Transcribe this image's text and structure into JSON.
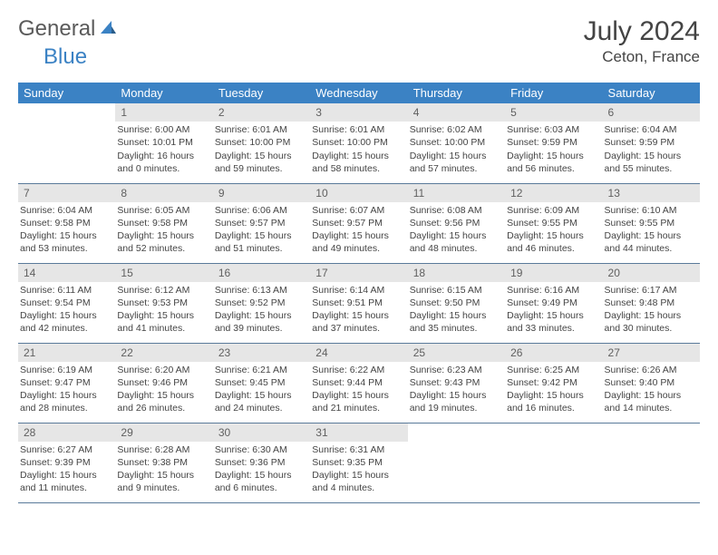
{
  "logo": {
    "word1": "General",
    "word2": "Blue"
  },
  "title": "July 2024",
  "location": "Ceton, France",
  "colors": {
    "header_bg": "#3b82c4",
    "header_fg": "#ffffff",
    "daynum_bg": "#e6e6e6",
    "daynum_fg": "#606060",
    "row_border": "#5a7a9a",
    "text": "#444444",
    "logo_gray": "#5a5a5a",
    "logo_blue": "#3b82c4"
  },
  "weekdays": [
    "Sunday",
    "Monday",
    "Tuesday",
    "Wednesday",
    "Thursday",
    "Friday",
    "Saturday"
  ],
  "weeks": [
    [
      null,
      {
        "n": "1",
        "sr": "Sunrise: 6:00 AM",
        "ss": "Sunset: 10:01 PM",
        "d1": "Daylight: 16 hours",
        "d2": "and 0 minutes."
      },
      {
        "n": "2",
        "sr": "Sunrise: 6:01 AM",
        "ss": "Sunset: 10:00 PM",
        "d1": "Daylight: 15 hours",
        "d2": "and 59 minutes."
      },
      {
        "n": "3",
        "sr": "Sunrise: 6:01 AM",
        "ss": "Sunset: 10:00 PM",
        "d1": "Daylight: 15 hours",
        "d2": "and 58 minutes."
      },
      {
        "n": "4",
        "sr": "Sunrise: 6:02 AM",
        "ss": "Sunset: 10:00 PM",
        "d1": "Daylight: 15 hours",
        "d2": "and 57 minutes."
      },
      {
        "n": "5",
        "sr": "Sunrise: 6:03 AM",
        "ss": "Sunset: 9:59 PM",
        "d1": "Daylight: 15 hours",
        "d2": "and 56 minutes."
      },
      {
        "n": "6",
        "sr": "Sunrise: 6:04 AM",
        "ss": "Sunset: 9:59 PM",
        "d1": "Daylight: 15 hours",
        "d2": "and 55 minutes."
      }
    ],
    [
      {
        "n": "7",
        "sr": "Sunrise: 6:04 AM",
        "ss": "Sunset: 9:58 PM",
        "d1": "Daylight: 15 hours",
        "d2": "and 53 minutes."
      },
      {
        "n": "8",
        "sr": "Sunrise: 6:05 AM",
        "ss": "Sunset: 9:58 PM",
        "d1": "Daylight: 15 hours",
        "d2": "and 52 minutes."
      },
      {
        "n": "9",
        "sr": "Sunrise: 6:06 AM",
        "ss": "Sunset: 9:57 PM",
        "d1": "Daylight: 15 hours",
        "d2": "and 51 minutes."
      },
      {
        "n": "10",
        "sr": "Sunrise: 6:07 AM",
        "ss": "Sunset: 9:57 PM",
        "d1": "Daylight: 15 hours",
        "d2": "and 49 minutes."
      },
      {
        "n": "11",
        "sr": "Sunrise: 6:08 AM",
        "ss": "Sunset: 9:56 PM",
        "d1": "Daylight: 15 hours",
        "d2": "and 48 minutes."
      },
      {
        "n": "12",
        "sr": "Sunrise: 6:09 AM",
        "ss": "Sunset: 9:55 PM",
        "d1": "Daylight: 15 hours",
        "d2": "and 46 minutes."
      },
      {
        "n": "13",
        "sr": "Sunrise: 6:10 AM",
        "ss": "Sunset: 9:55 PM",
        "d1": "Daylight: 15 hours",
        "d2": "and 44 minutes."
      }
    ],
    [
      {
        "n": "14",
        "sr": "Sunrise: 6:11 AM",
        "ss": "Sunset: 9:54 PM",
        "d1": "Daylight: 15 hours",
        "d2": "and 42 minutes."
      },
      {
        "n": "15",
        "sr": "Sunrise: 6:12 AM",
        "ss": "Sunset: 9:53 PM",
        "d1": "Daylight: 15 hours",
        "d2": "and 41 minutes."
      },
      {
        "n": "16",
        "sr": "Sunrise: 6:13 AM",
        "ss": "Sunset: 9:52 PM",
        "d1": "Daylight: 15 hours",
        "d2": "and 39 minutes."
      },
      {
        "n": "17",
        "sr": "Sunrise: 6:14 AM",
        "ss": "Sunset: 9:51 PM",
        "d1": "Daylight: 15 hours",
        "d2": "and 37 minutes."
      },
      {
        "n": "18",
        "sr": "Sunrise: 6:15 AM",
        "ss": "Sunset: 9:50 PM",
        "d1": "Daylight: 15 hours",
        "d2": "and 35 minutes."
      },
      {
        "n": "19",
        "sr": "Sunrise: 6:16 AM",
        "ss": "Sunset: 9:49 PM",
        "d1": "Daylight: 15 hours",
        "d2": "and 33 minutes."
      },
      {
        "n": "20",
        "sr": "Sunrise: 6:17 AM",
        "ss": "Sunset: 9:48 PM",
        "d1": "Daylight: 15 hours",
        "d2": "and 30 minutes."
      }
    ],
    [
      {
        "n": "21",
        "sr": "Sunrise: 6:19 AM",
        "ss": "Sunset: 9:47 PM",
        "d1": "Daylight: 15 hours",
        "d2": "and 28 minutes."
      },
      {
        "n": "22",
        "sr": "Sunrise: 6:20 AM",
        "ss": "Sunset: 9:46 PM",
        "d1": "Daylight: 15 hours",
        "d2": "and 26 minutes."
      },
      {
        "n": "23",
        "sr": "Sunrise: 6:21 AM",
        "ss": "Sunset: 9:45 PM",
        "d1": "Daylight: 15 hours",
        "d2": "and 24 minutes."
      },
      {
        "n": "24",
        "sr": "Sunrise: 6:22 AM",
        "ss": "Sunset: 9:44 PM",
        "d1": "Daylight: 15 hours",
        "d2": "and 21 minutes."
      },
      {
        "n": "25",
        "sr": "Sunrise: 6:23 AM",
        "ss": "Sunset: 9:43 PM",
        "d1": "Daylight: 15 hours",
        "d2": "and 19 minutes."
      },
      {
        "n": "26",
        "sr": "Sunrise: 6:25 AM",
        "ss": "Sunset: 9:42 PM",
        "d1": "Daylight: 15 hours",
        "d2": "and 16 minutes."
      },
      {
        "n": "27",
        "sr": "Sunrise: 6:26 AM",
        "ss": "Sunset: 9:40 PM",
        "d1": "Daylight: 15 hours",
        "d2": "and 14 minutes."
      }
    ],
    [
      {
        "n": "28",
        "sr": "Sunrise: 6:27 AM",
        "ss": "Sunset: 9:39 PM",
        "d1": "Daylight: 15 hours",
        "d2": "and 11 minutes."
      },
      {
        "n": "29",
        "sr": "Sunrise: 6:28 AM",
        "ss": "Sunset: 9:38 PM",
        "d1": "Daylight: 15 hours",
        "d2": "and 9 minutes."
      },
      {
        "n": "30",
        "sr": "Sunrise: 6:30 AM",
        "ss": "Sunset: 9:36 PM",
        "d1": "Daylight: 15 hours",
        "d2": "and 6 minutes."
      },
      {
        "n": "31",
        "sr": "Sunrise: 6:31 AM",
        "ss": "Sunset: 9:35 PM",
        "d1": "Daylight: 15 hours",
        "d2": "and 4 minutes."
      },
      null,
      null,
      null
    ]
  ]
}
